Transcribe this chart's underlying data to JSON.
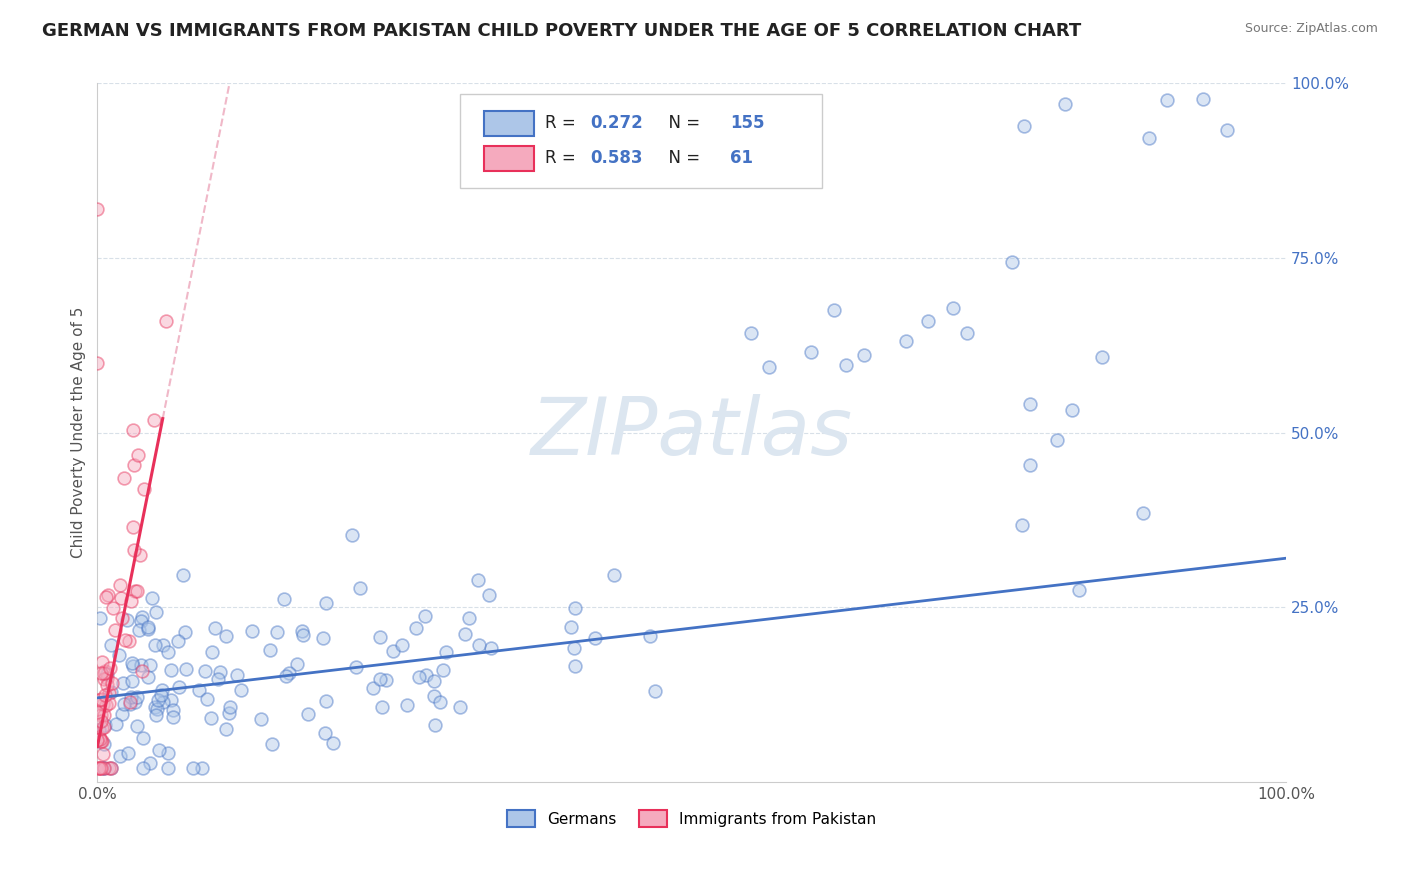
{
  "title": "GERMAN VS IMMIGRANTS FROM PAKISTAN CHILD POVERTY UNDER THE AGE OF 5 CORRELATION CHART",
  "source": "Source: ZipAtlas.com",
  "ylabel": "Child Poverty Under the Age of 5",
  "xlim": [
    0,
    1.0
  ],
  "ylim": [
    0,
    1.0
  ],
  "xticks": [
    0,
    0.25,
    0.5,
    0.75,
    1.0
  ],
  "xticklabels": [
    "0.0%",
    "",
    "",
    "",
    "100.0%"
  ],
  "yticks": [
    0.25,
    0.5,
    0.75,
    1.0
  ],
  "yticklabels": [
    "25.0%",
    "50.0%",
    "75.0%",
    "100.0%"
  ],
  "german_R": 0.272,
  "german_N": 155,
  "pakistan_R": 0.583,
  "pakistan_N": 61,
  "german_scatter_color": "#adc6e8",
  "pakistan_scatter_color": "#f5aabe",
  "german_line_color": "#4472c4",
  "pakistan_line_color": "#e8305a",
  "pakistan_dash_color": "#f0b8c8",
  "watermark_text": "ZIPatlas",
  "watermark_color": "#dce6f0",
  "legend_german": "Germans",
  "legend_pakistan": "Immigrants from Pakistan",
  "background_color": "#ffffff",
  "grid_color": "#d8e0e8",
  "title_fontsize": 13,
  "axis_label_fontsize": 11,
  "tick_fontsize": 11,
  "scatter_size": 85,
  "scatter_alpha": 0.45,
  "scatter_linewidth": 1.2,
  "german_line_intercept": 0.12,
  "german_line_slope": 0.2,
  "pakistan_line_x0": 0.0,
  "pakistan_line_y0": 0.05,
  "pakistan_line_x1": 0.055,
  "pakistan_line_y1": 0.52
}
